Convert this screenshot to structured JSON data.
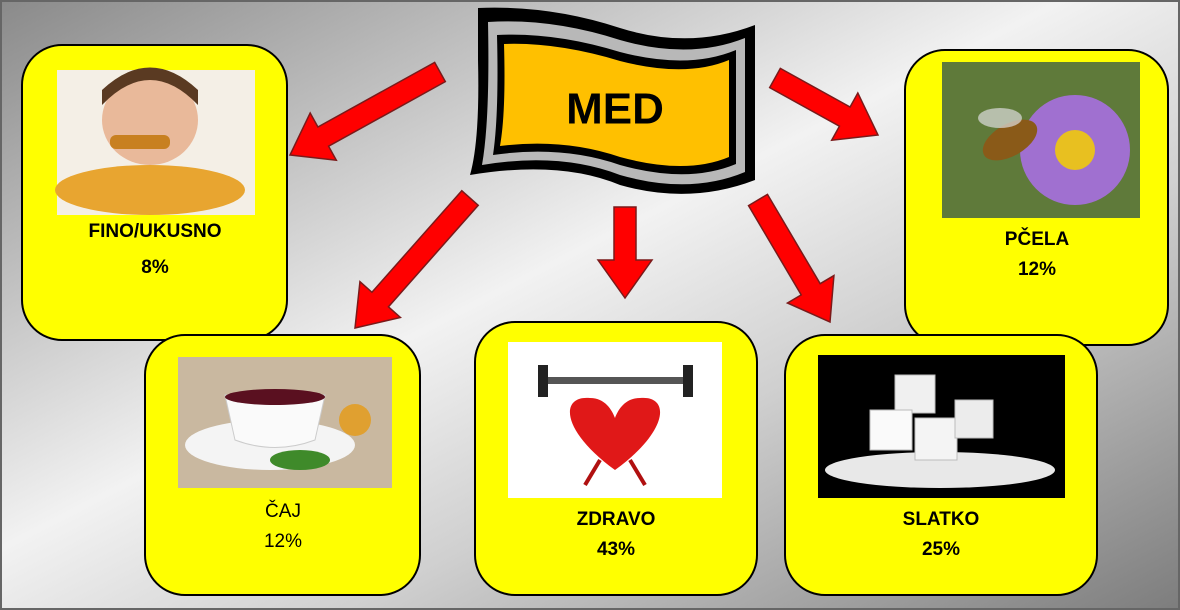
{
  "center": {
    "label": "MED"
  },
  "nodes": [
    {
      "label": "FINO/UKUSNO",
      "value": "8%"
    },
    {
      "label": "PČELA",
      "value": "12%"
    },
    {
      "label": "ČAJ",
      "value": "12%"
    },
    {
      "label": "ZDRAVO",
      "value": "43%"
    },
    {
      "label": "SLATKO",
      "value": "25%"
    }
  ]
}
